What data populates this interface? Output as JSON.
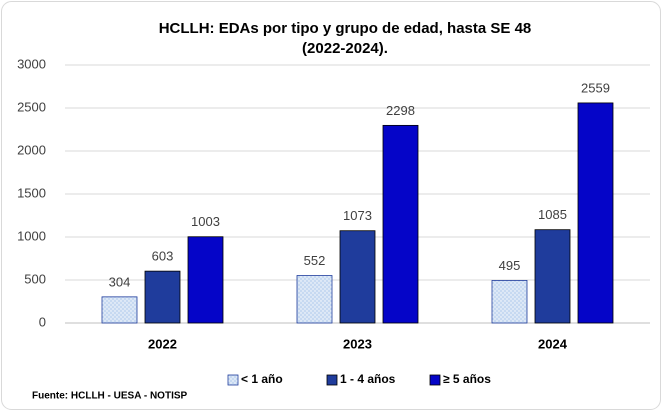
{
  "chart_data": {
    "type": "bar",
    "title": [
      "HCLLH: EDAs por tipo y grupo de edad, hasta SE 48",
      "(2022-2024)."
    ],
    "categories": [
      "2022",
      "2023",
      "2024"
    ],
    "series": [
      {
        "name": "< 1 año",
        "color": "#c6d9f1",
        "pattern": "dots",
        "values": [
          304,
          552,
          495
        ]
      },
      {
        "name": "1 - 4 años",
        "color": "#1f3c9c",
        "values": [
          603,
          1073,
          1085
        ]
      },
      {
        "name": "≥ 5 años",
        "color": "#0505c8",
        "values": [
          1003,
          2298,
          2559
        ]
      }
    ],
    "ylim": [
      0,
      3000
    ],
    "yticks": [
      0,
      500,
      1000,
      1500,
      2000,
      2500,
      3000
    ],
    "grid": true,
    "legend": "bottom",
    "source": "Fuente:  HCLLH - UESA - NOTISP"
  }
}
